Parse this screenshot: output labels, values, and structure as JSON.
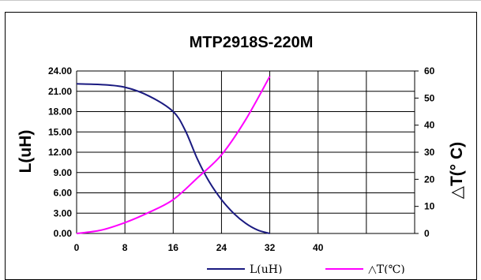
{
  "chart_data": {
    "type": "line",
    "title": "MTP2918S-220M",
    "xlabel": "",
    "ylabel": "L(uH)",
    "y2label": "△T(° C)",
    "xlim": [
      0,
      56
    ],
    "ylim": [
      0,
      24
    ],
    "y2lim": [
      0,
      60
    ],
    "x_ticks": [
      "0",
      "8",
      "16",
      "24",
      "32",
      "40"
    ],
    "y_ticks": [
      "0.00",
      "3.00",
      "6.00",
      "9.00",
      "12.00",
      "15.00",
      "18.00",
      "21.00",
      "24.00"
    ],
    "y2_ticks": [
      "0",
      "10",
      "20",
      "30",
      "40",
      "50",
      "60"
    ],
    "grid": true,
    "legend_position": "bottom",
    "series": [
      {
        "name": "L(uH)",
        "axis": "left",
        "color": "#1a1a80",
        "x": [
          0,
          4,
          8,
          12,
          16,
          18,
          20,
          22,
          24,
          26,
          28,
          30,
          32
        ],
        "y": [
          22.1,
          22.0,
          21.6,
          20.3,
          18.0,
          15.2,
          11.0,
          7.6,
          5.0,
          3.0,
          1.5,
          0.5,
          0.0
        ]
      },
      {
        "name": "△T(℃)",
        "axis": "right",
        "color": "#ff00ff",
        "x": [
          0,
          4,
          8,
          12,
          16,
          20,
          24,
          28,
          32
        ],
        "y": [
          0,
          1.2,
          4,
          7.8,
          12.5,
          20.5,
          29,
          42,
          58
        ]
      }
    ]
  }
}
